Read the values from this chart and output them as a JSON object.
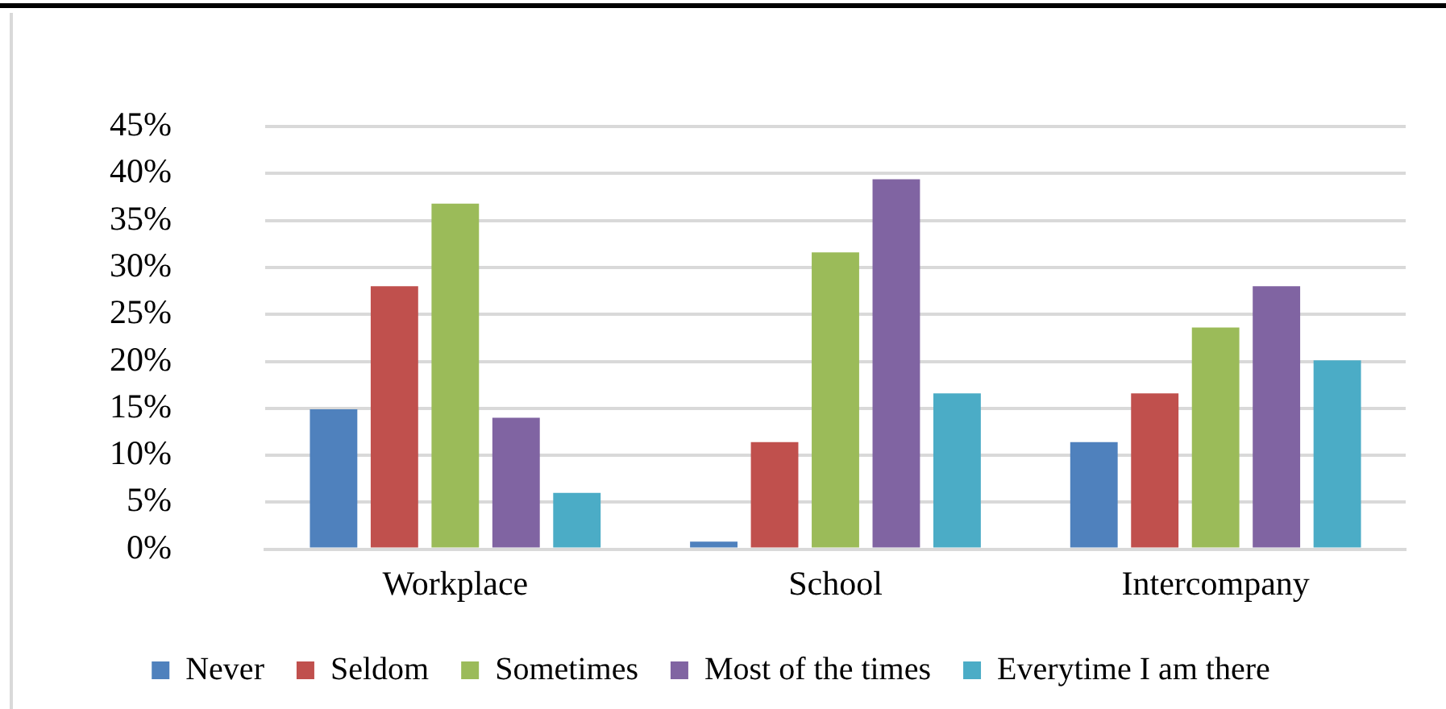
{
  "chart_data": {
    "type": "bar",
    "categories": [
      "Workplace",
      "School",
      "Intercompany"
    ],
    "series": [
      {
        "name": "Never",
        "color": "#4f81bd",
        "values": [
          14.9,
          0.8,
          11.4
        ]
      },
      {
        "name": "Seldom",
        "color": "#c0504d",
        "values": [
          28.0,
          11.4,
          16.6
        ]
      },
      {
        "name": "Sometimes",
        "color": "#9bbb59",
        "values": [
          36.8,
          31.6,
          23.6
        ]
      },
      {
        "name": "Most of the times",
        "color": "#8064a2",
        "values": [
          14.0,
          39.4,
          28.0
        ]
      },
      {
        "name": "Everytime I am there",
        "color": "#4bacc6",
        "values": [
          6.0,
          16.6,
          20.1
        ]
      }
    ],
    "ylim": [
      0,
      45
    ],
    "yticks": [
      {
        "value": 0,
        "label": "0%"
      },
      {
        "value": 5,
        "label": "5%"
      },
      {
        "value": 10,
        "label": "10%"
      },
      {
        "value": 15,
        "label": "15%"
      },
      {
        "value": 20,
        "label": "20%"
      },
      {
        "value": 25,
        "label": "25%"
      },
      {
        "value": 30,
        "label": "30%"
      },
      {
        "value": 35,
        "label": "35%"
      },
      {
        "value": 40,
        "label": "40%"
      },
      {
        "value": 45,
        "label": "45%"
      }
    ],
    "grid": "y",
    "legend": "bottom"
  }
}
